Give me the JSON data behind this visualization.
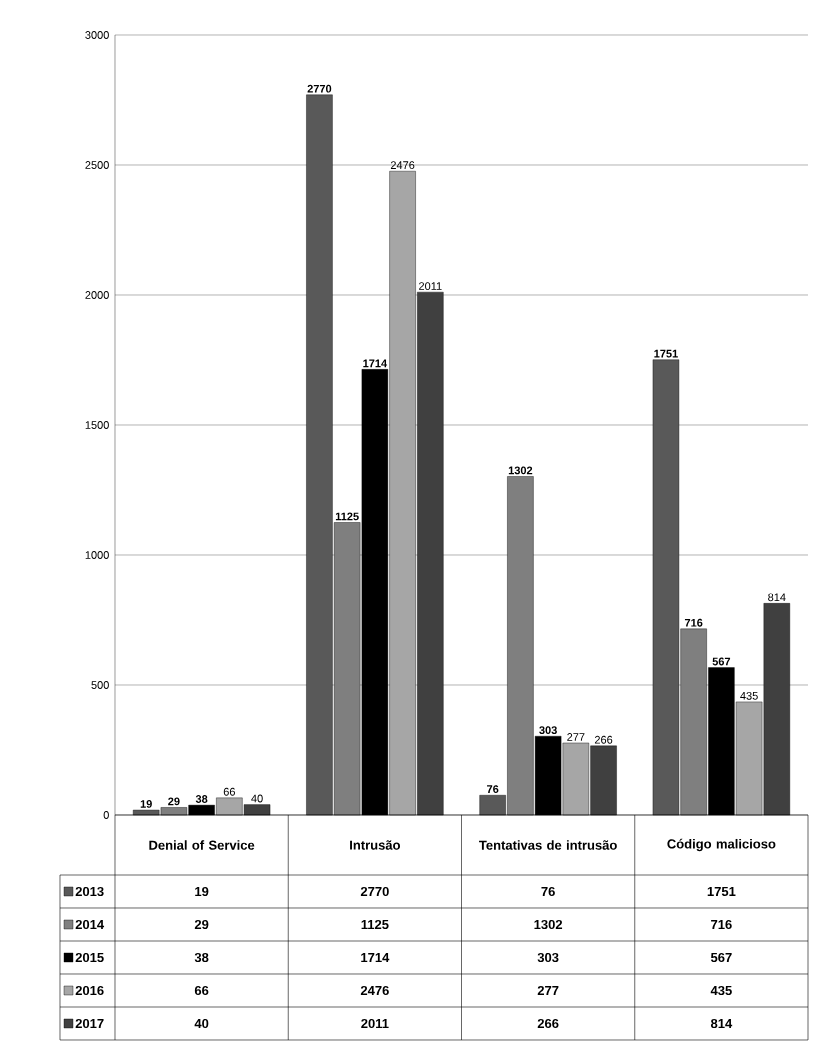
{
  "chart_data": {
    "type": "bar",
    "categories": [
      "Denial of Service",
      "Intrusão",
      "Tentativas de intrusão",
      "Código malicioso"
    ],
    "series": [
      {
        "name": "2013",
        "color": "#595959",
        "values": [
          19,
          2770,
          76,
          1751
        ],
        "value_labels": [
          "19",
          "2770",
          "76",
          "1751"
        ]
      },
      {
        "name": "2014",
        "color": "#7f7f7f",
        "values": [
          29,
          1125,
          1302,
          716
        ],
        "value_labels": [
          "29",
          "1125",
          "1302",
          "716"
        ]
      },
      {
        "name": "2015",
        "color": "#000000",
        "values": [
          38,
          1714,
          303,
          567
        ],
        "value_labels": [
          "38",
          "1714",
          "303",
          "567"
        ]
      },
      {
        "name": "2016",
        "color": "#a6a6a6",
        "values": [
          66,
          2476,
          277,
          435
        ],
        "value_labels": [
          "66",
          "2476",
          "277",
          "435"
        ]
      },
      {
        "name": "2017",
        "color": "#404040",
        "values": [
          40,
          2011,
          266,
          814
        ],
        "value_labels": [
          "40",
          "2011",
          "266",
          "814"
        ]
      }
    ],
    "ylim": [
      0,
      3000
    ],
    "yticks": [
      0,
      500,
      1000,
      1500,
      2000,
      2500,
      3000
    ],
    "grid": "y",
    "legend": "bottom",
    "annotations": [
      "19",
      "2770",
      "76",
      "1751",
      "29",
      "1125",
      "1302",
      "716",
      "38",
      "1714",
      "303",
      "567",
      "66",
      "2476",
      "277",
      "435",
      "40",
      "2011",
      "266",
      "814"
    ]
  }
}
